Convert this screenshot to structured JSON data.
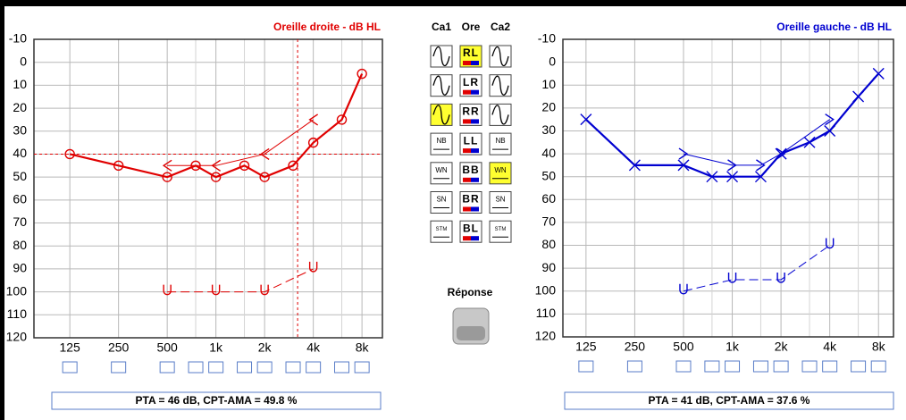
{
  "chart_data": [
    {
      "type": "line",
      "title": "Oreille droite - dB HL",
      "color": "#e00000",
      "xscale": "log",
      "xlim": [
        75,
        10700
      ],
      "xticks": [
        125,
        250,
        500,
        {
          "value": 1000,
          "label": "1k"
        },
        {
          "value": 2000,
          "label": "2k"
        },
        {
          "value": 4000,
          "label": "4k"
        },
        {
          "value": 8000,
          "label": "8k"
        }
      ],
      "xminorticks": [
        750,
        1500,
        3000,
        6000
      ],
      "ylim": [
        -10,
        120
      ],
      "yinverted": true,
      "yticks": [
        -10,
        0,
        10,
        20,
        30,
        40,
        50,
        60,
        70,
        80,
        90,
        100,
        110,
        120
      ],
      "grid": true,
      "cursor": {
        "x": 3200,
        "y": 40
      },
      "series": [
        {
          "color": "#e00000",
          "marker": "circle",
          "width": 2.2,
          "dash": "none",
          "x": [
            125,
            250,
            500,
            750,
            1000,
            1500,
            2000,
            3000,
            4000,
            6000,
            8000
          ],
          "values": [
            40,
            45,
            50,
            45,
            50,
            45,
            50,
            45,
            35,
            25,
            5
          ]
        },
        {
          "color": "#e00000",
          "marker": "chevron-left",
          "width": 1,
          "dash": "none",
          "x": [
            500,
            1000,
            2000,
            4000
          ],
          "values": [
            45,
            45,
            40,
            25
          ]
        },
        {
          "color": "#e00000",
          "marker": "u",
          "width": 1,
          "dash": "10 5",
          "x": [
            500,
            1000,
            2000,
            4000
          ],
          "values": [
            100,
            100,
            100,
            90
          ]
        }
      ]
    },
    {
      "type": "line",
      "title": "Oreille gauche - dB HL",
      "color": "#0000d0",
      "xscale": "log",
      "xlim": [
        90,
        9900
      ],
      "xticks": [
        125,
        250,
        500,
        {
          "value": 1000,
          "label": "1k"
        },
        {
          "value": 2000,
          "label": "2k"
        },
        {
          "value": 4000,
          "label": "4k"
        },
        {
          "value": 8000,
          "label": "8k"
        }
      ],
      "xminorticks": [
        750,
        1500,
        3000,
        6000
      ],
      "ylim": [
        -10,
        120
      ],
      "yinverted": true,
      "yticks": [
        -10,
        0,
        10,
        20,
        30,
        40,
        50,
        60,
        70,
        80,
        90,
        100,
        110,
        120
      ],
      "grid": true,
      "series": [
        {
          "color": "#0000d0",
          "marker": "x",
          "width": 2.2,
          "dash": "none",
          "x": [
            125,
            250,
            500,
            750,
            1000,
            1500,
            2000,
            3000,
            4000,
            6000,
            8000
          ],
          "values": [
            25,
            45,
            45,
            50,
            50,
            50,
            40,
            35,
            30,
            15,
            5
          ]
        },
        {
          "color": "#0000d0",
          "marker": "chevron-right",
          "width": 1,
          "dash": "none",
          "x": [
            500,
            1000,
            1500,
            2000,
            4000
          ],
          "values": [
            40,
            45,
            45,
            40,
            25
          ]
        },
        {
          "color": "#0000d0",
          "marker": "u",
          "width": 1,
          "dash": "10 5",
          "x": [
            500,
            1000,
            2000,
            4000
          ],
          "values": [
            100,
            95,
            95,
            80
          ]
        }
      ]
    }
  ],
  "pta": [
    "PTA = 46 dB,  CPT-AMA = 49.8 %",
    "PTA = 41 dB,  CPT-AMA = 37.6 %"
  ],
  "panel": {
    "headers": [
      "Ca1",
      "Ore",
      "Ca2"
    ],
    "ore": [
      "RL",
      "LR",
      "RR",
      "LL",
      "BB",
      "BR",
      "BL"
    ],
    "noise": [
      "NB",
      "WN",
      "SN",
      "STM"
    ],
    "selected": {
      "ca1": 2,
      "ore": 0,
      "ca2": 4
    },
    "response": "Réponse"
  }
}
